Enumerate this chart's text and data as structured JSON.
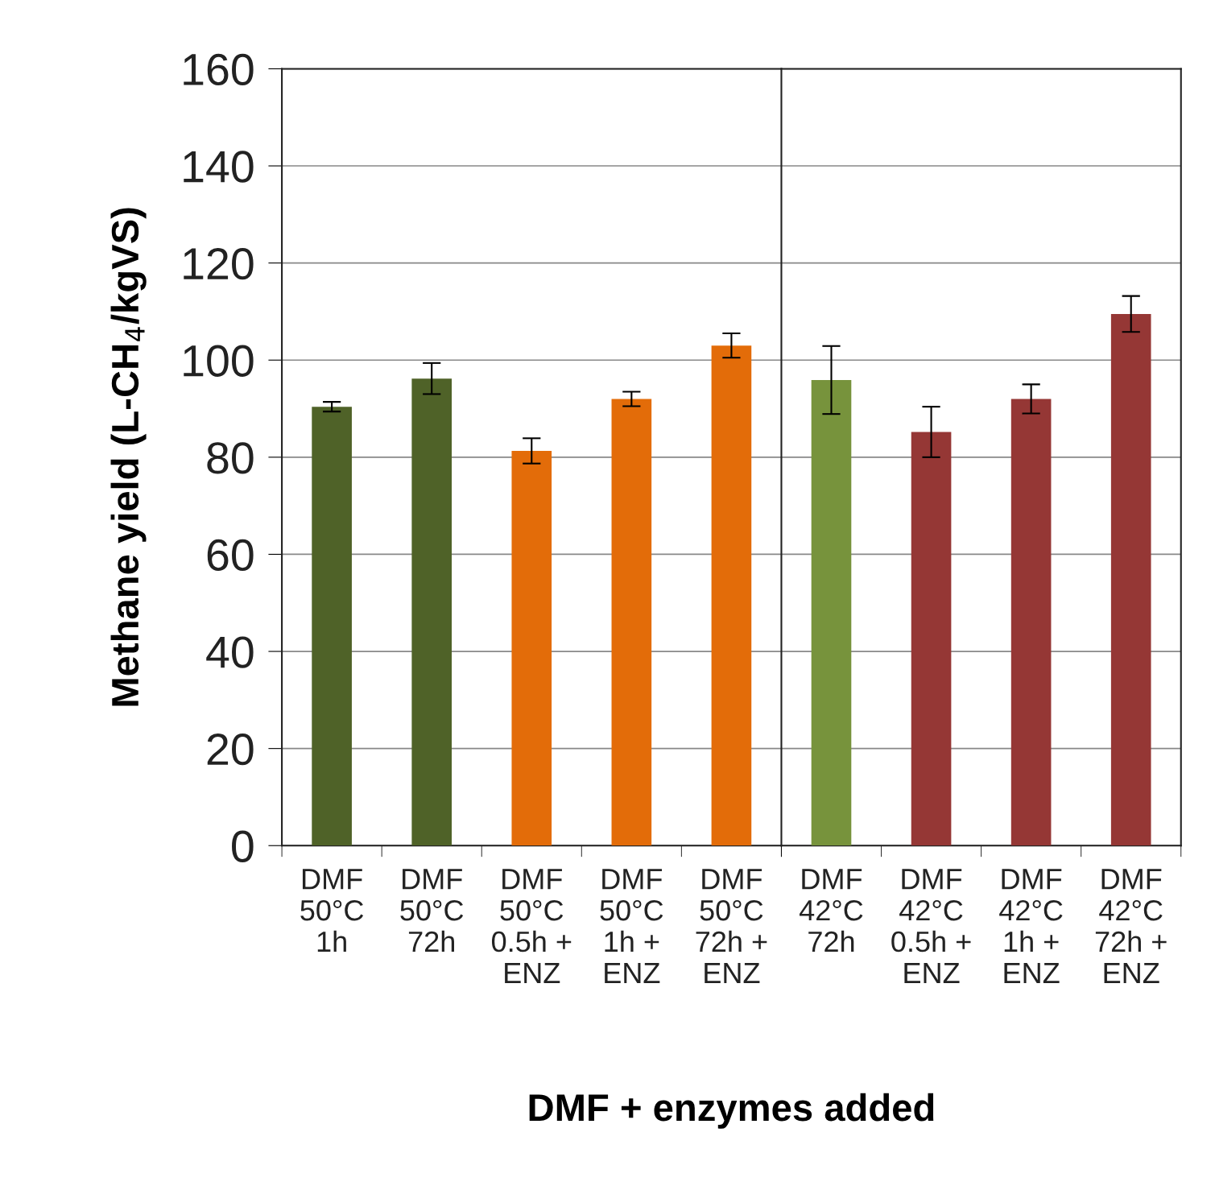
{
  "chart_data": [
    {
      "type": "bar",
      "xlabel": "DMF + enzymes added",
      "ylabel": "Methane yield (L-CH$_{4}$/kgVS)",
      "categories": [
        "DMF\n50°C\n1h",
        "DMF\n50°C\n72h",
        "DMF\n50°C\n0.5h +\nENZ",
        "DMF\n50°C\n1h +\nENZ",
        "DMF\n50°C\n72h +\nENZ"
      ],
      "values": [
        90.4,
        96.2,
        81.3,
        92.0,
        103.0
      ],
      "errors": [
        1.0,
        3.2,
        2.6,
        1.5,
        2.5
      ],
      "colors": [
        "#4f6228",
        "#4f6228",
        "#e36c09",
        "#e36c09",
        "#e36c09"
      ],
      "ylim": [
        0,
        160
      ],
      "yticks": [
        0,
        20,
        40,
        60,
        80,
        100,
        120,
        140,
        160
      ],
      "grid": "y"
    },
    {
      "type": "bar",
      "categories": [
        "DMF\n42°C\n72h",
        "DMF\n42°C\n0.5h +\nENZ",
        "DMF\n42°C\n1h +\nENZ",
        "DMF\n42°C\n72h +\nENZ"
      ],
      "values": [
        95.9,
        85.2,
        92.0,
        109.5
      ],
      "errors": [
        7.0,
        5.2,
        3.0,
        3.7
      ],
      "colors": [
        "#77933c",
        "#953735",
        "#953735",
        "#953735"
      ],
      "ylim": [
        0,
        160
      ],
      "yticks": [
        0,
        20,
        40,
        60,
        80,
        100,
        120,
        140,
        160
      ],
      "tick_labels": "x",
      "grid": "y"
    }
  ]
}
